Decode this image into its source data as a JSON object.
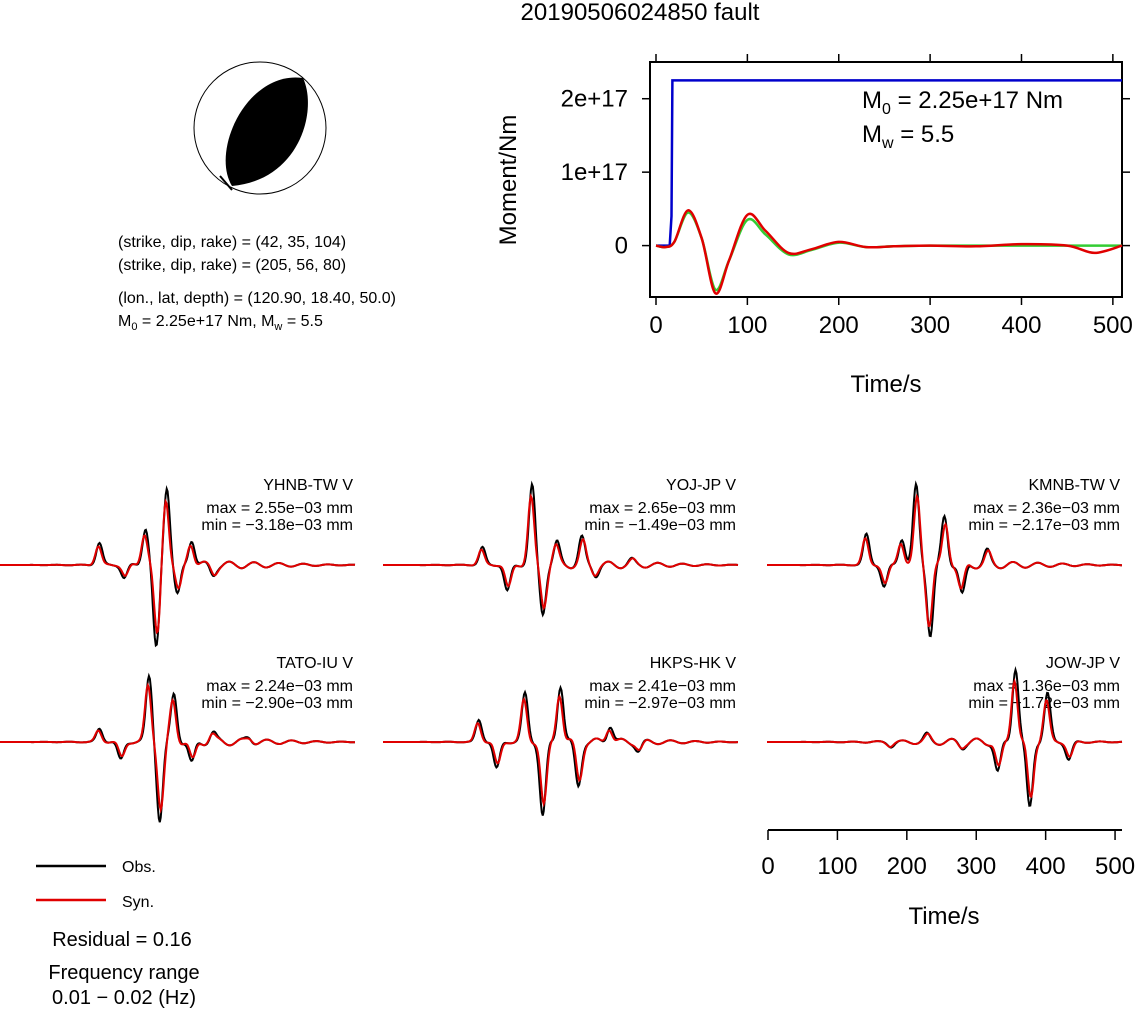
{
  "title": "20190506024850 fault",
  "colors": {
    "observed": "#000000",
    "synthetic": "#e00000",
    "moment_cumulative": "#0000cc",
    "moment_rate": "#33cc33",
    "beachball_fill": "#000000"
  },
  "focal_info": {
    "line1": "(strike, dip, rake) = (42, 35, 104)",
    "line2": "(strike, dip, rake) = (205, 56, 80)",
    "line3": "(lon., lat, depth) = (120.90, 18.40, 50.0)",
    "line4_m0": "M",
    "line4_m0_sub": "0",
    "line4_m0_val": " = 2.25e+17 Nm, M",
    "line4_mw_sub": "w",
    "line4_mw_val": " = 5.5"
  },
  "moment_plot": {
    "ylabel": "Moment/Nm",
    "xlabel": "Time/s",
    "yticks": [
      "0",
      "1e+17",
      "2e+17"
    ],
    "xticks": [
      "0",
      "100",
      "200",
      "300",
      "400",
      "500"
    ],
    "m0_sym": "M",
    "m0_sub": "0",
    "m0_val": " = 2.25e+17 Nm",
    "mw_sym": "M",
    "mw_sub": "w",
    "mw_val": " = 5.5"
  },
  "stations": [
    {
      "name": "YHNB-TW V",
      "max": "max = 2.55e−03 mm",
      "min": "min = −3.18e−03 mm"
    },
    {
      "name": "YOJ-JP V",
      "max": "max = 2.65e−03 mm",
      "min": "min = −1.49e−03 mm"
    },
    {
      "name": "KMNB-TW V",
      "max": "max = 2.36e−03 mm",
      "min": "min = −2.17e−03 mm"
    },
    {
      "name": "TATO-IU V",
      "max": "max = 2.24e−03 mm",
      "min": "min = −2.90e−03 mm"
    },
    {
      "name": "HKPS-HK V",
      "max": "max = 2.41e−03 mm",
      "min": "min = −2.97e−03 mm"
    },
    {
      "name": "JOW-JP V",
      "max": "max = 1.36e−03 mm",
      "min": "min = −1.72e−03 mm"
    }
  ],
  "waveform_axis": {
    "xlabel": "Time/s",
    "xticks": [
      "0",
      "100",
      "200",
      "300",
      "400",
      "500"
    ]
  },
  "legend": {
    "obs": "Obs.",
    "syn": "Syn."
  },
  "residual": "Residual = 0.16",
  "freq_label": "Frequency range",
  "freq_value": "0.01 − 0.02 (Hz)",
  "chart_data": {
    "type": "line",
    "title": "20190506024850 fault",
    "moment_function": {
      "xlabel": "Time/s",
      "ylabel": "Moment/Nm",
      "xlim": [
        0,
        510
      ],
      "ylim": [
        -7e+16,
        2.5e+17
      ],
      "series": [
        {
          "name": "cumulative moment",
          "x": [
            0,
            10,
            15,
            17,
            18,
            510
          ],
          "y": [
            0,
            0,
            0,
            4e+16,
            2.25e+17,
            2.25e+17
          ]
        },
        {
          "name": "moment rate (green)",
          "x": [
            0,
            10,
            20,
            35,
            50,
            65,
            80,
            100,
            120,
            145,
            170,
            200,
            230,
            260,
            300,
            350,
            400,
            450,
            480,
            510
          ],
          "y": [
            0,
            -2000000000000000.0,
            5000000000000000.0,
            4.5e+16,
            1e+16,
            -6e+16,
            -2e+16,
            3.5e+16,
            1.5e+16,
            -1.2e+16,
            -6000000000000000.0,
            4000000000000000.0,
            -2000000000000000.0,
            -1000000000000000.0,
            0,
            0,
            0,
            0,
            0,
            0
          ]
        },
        {
          "name": "moment rate (red)",
          "x": [
            0,
            10,
            20,
            35,
            50,
            65,
            80,
            100,
            120,
            145,
            170,
            200,
            230,
            260,
            300,
            350,
            400,
            450,
            480,
            510
          ],
          "y": [
            0,
            -2000000000000000.0,
            5000000000000000.0,
            4.8e+16,
            1e+16,
            -6.5e+16,
            -2e+16,
            4.2e+16,
            2e+16,
            -1e+16,
            -5000000000000000.0,
            5000000000000000.0,
            -2000000000000000.0,
            -1000000000000000.0,
            0,
            -1000000000000000.0,
            2000000000000000.0,
            0,
            -1e+16,
            0
          ]
        }
      ]
    },
    "waveforms": {
      "xlabel": "Time/s",
      "xlim": [
        0,
        510
      ],
      "stations": [
        "YHNB-TW V",
        "YOJ-JP V",
        "KMNB-TW V",
        "TATO-IU V",
        "HKPS-HK V",
        "JOW-JP V"
      ],
      "max_mm": [
        0.00255,
        0.00265,
        0.00236,
        0.00224,
        0.00241,
        0.00136
      ],
      "min_mm": [
        -0.00318,
        -0.00149,
        -0.00217,
        -0.0029,
        -0.00297,
        -0.00172
      ],
      "residual": 0.16,
      "frequency_range_hz": [
        0.01,
        0.02
      ]
    }
  }
}
